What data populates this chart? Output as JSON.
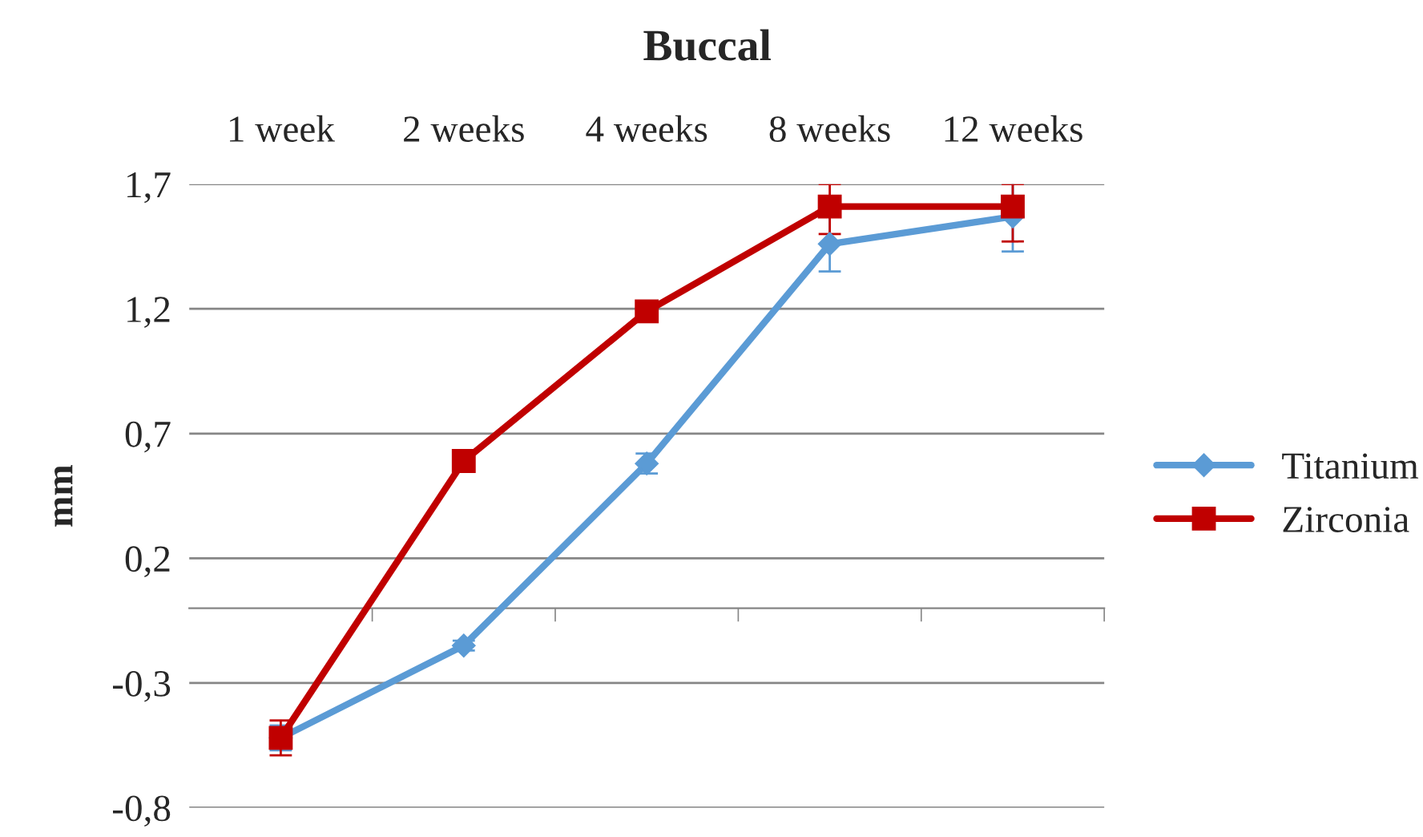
{
  "chart_data": {
    "type": "line",
    "title": "Buccal",
    "ylabel": "mm",
    "categories": [
      "1 week",
      "2 weeks",
      "4 weeks",
      "8 weeks",
      "12 weeks"
    ],
    "series": [
      {
        "name": "Titanium",
        "color": "#5b9bd5",
        "marker": "diamond",
        "values": [
          -0.52,
          -0.15,
          0.58,
          1.46,
          1.57
        ],
        "errors": [
          0.05,
          0.02,
          0.04,
          0.11,
          0.14
        ]
      },
      {
        "name": "Zirconia",
        "color": "#c00000",
        "marker": "square",
        "values": [
          -0.52,
          0.59,
          1.19,
          1.61,
          1.61
        ],
        "errors": [
          0.07,
          null,
          null,
          [
            1.5,
            1.7
          ],
          [
            1.47,
            1.7
          ]
        ]
      }
    ],
    "ylim": [
      -0.8,
      1.7
    ],
    "yticks": [
      {
        "value": -0.8,
        "label": "-0,8"
      },
      {
        "value": -0.3,
        "label": "-0,3"
      },
      {
        "value": 0.2,
        "label": "0,2"
      },
      {
        "value": 0.7,
        "label": "0,7"
      },
      {
        "value": 1.2,
        "label": "1,2"
      },
      {
        "value": 1.7,
        "label": "1,7"
      }
    ],
    "grid": "y",
    "legend": "right",
    "line_style": "solid"
  }
}
